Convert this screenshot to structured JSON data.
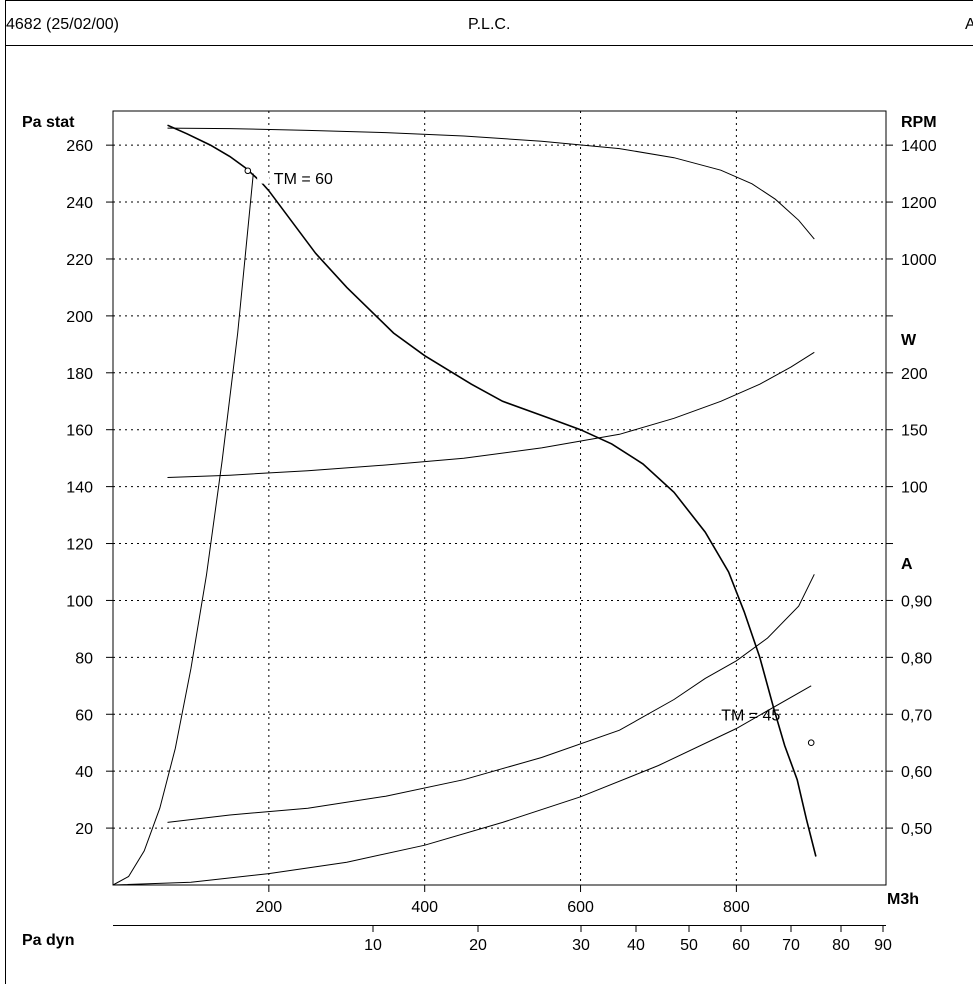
{
  "header": {
    "code": "4682 (25/02/00)",
    "title": "P.L.C.",
    "right_fragment": "A"
  },
  "chart_data": {
    "type": "line",
    "grid": true,
    "x_axis": {
      "unit_label": "M3h",
      "ticks": [
        200,
        400,
        600,
        800
      ],
      "range": [
        0,
        992
      ]
    },
    "pa_dyn_axis": {
      "label": "Pa dyn",
      "ticks": [
        10,
        20,
        30,
        40,
        50,
        60,
        70,
        80,
        90
      ]
    },
    "y_left": {
      "label": "Pa stat",
      "ticks": [
        20,
        40,
        60,
        80,
        100,
        120,
        140,
        160,
        180,
        200,
        220,
        240,
        260
      ],
      "range": [
        0,
        272
      ]
    },
    "rpm_axis": {
      "label": "RPM",
      "ticks": [
        "1000",
        "1200",
        "1400"
      ]
    },
    "w_axis": {
      "label": "W",
      "ticks": [
        "100",
        "150",
        "200"
      ]
    },
    "a_axis": {
      "label": "A",
      "ticks": [
        "0,50",
        "0,60",
        "0,70",
        "0,80",
        "0,90"
      ]
    },
    "series": [
      {
        "id": "pressure",
        "x": [
          70,
          95,
          125,
          150,
          170,
          190,
          200,
          260,
          300,
          360,
          400,
          460,
          500,
          560,
          600,
          640,
          680,
          720,
          760,
          790,
          810,
          830,
          848,
          862,
          878,
          890,
          902
        ],
        "y": [
          267,
          264,
          260,
          256,
          252,
          247,
          244,
          222,
          210,
          194,
          186,
          176,
          170,
          164,
          160,
          155,
          148,
          138,
          124,
          110,
          96,
          80,
          62,
          49,
          37,
          23,
          10
        ]
      },
      {
        "id": "rpm",
        "x": [
          70,
          150,
          250,
          350,
          450,
          550,
          650,
          720,
          780,
          820,
          850,
          880,
          900
        ],
        "y": [
          1460,
          1458,
          1452,
          1444,
          1432,
          1414,
          1388,
          1356,
          1312,
          1264,
          1210,
          1136,
          1070
        ]
      },
      {
        "id": "power",
        "x": [
          70,
          150,
          250,
          350,
          450,
          550,
          650,
          720,
          780,
          830,
          870,
          900
        ],
        "y": [
          108,
          110,
          114,
          119,
          125,
          134,
          146,
          160,
          175,
          190,
          205,
          218
        ]
      },
      {
        "id": "current",
        "x": [
          70,
          150,
          250,
          350,
          450,
          550,
          650,
          720,
          760,
          800,
          840,
          880,
          900
        ],
        "y": [
          0.51,
          0.523,
          0.535,
          0.556,
          0.585,
          0.624,
          0.672,
          0.726,
          0.763,
          0.794,
          0.834,
          0.89,
          0.946
        ]
      },
      {
        "id": "system_tm60",
        "x": [
          0,
          20,
          40,
          60,
          80,
          100,
          120,
          140,
          160,
          180
        ],
        "y": [
          0,
          3,
          12,
          27,
          48,
          76,
          109,
          149,
          194,
          250
        ]
      },
      {
        "id": "system_tm45",
        "x": [
          0,
          100,
          200,
          300,
          400,
          500,
          600,
          700,
          800,
          896
        ],
        "y": [
          0,
          1,
          4,
          8,
          14,
          22,
          31,
          42,
          55,
          70
        ]
      }
    ],
    "annotations": [
      {
        "text": "TM = 60",
        "x": 173,
        "y": 251
      },
      {
        "text": "TM = 45",
        "x": 896,
        "y": 50
      }
    ]
  }
}
